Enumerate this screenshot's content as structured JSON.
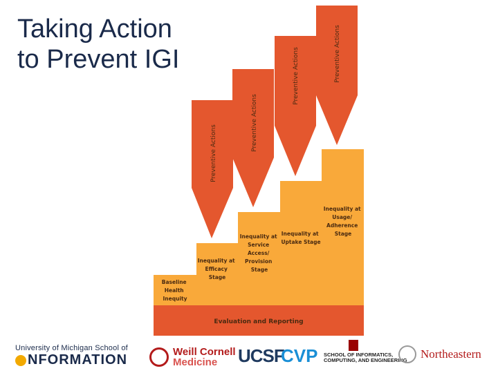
{
  "title": {
    "line1": "Taking Action",
    "line2": "to Prevent IGI"
  },
  "arrows": [
    {
      "label": "Preventive Actions"
    },
    {
      "label": "Preventive Actions"
    },
    {
      "label": "Preventive Actions"
    },
    {
      "label": "Preventive Actions"
    }
  ],
  "stages": [
    {
      "lines": [
        "Baseline",
        "Health",
        "Inequity"
      ]
    },
    {
      "lines": [
        "Inequality at",
        "Efficacy",
        "Stage"
      ]
    },
    {
      "lines": [
        "Inequality at",
        "Service",
        "Access/",
        "Provision",
        "Stage"
      ]
    },
    {
      "lines": [
        "Inequality at",
        "Uptake Stage"
      ]
    },
    {
      "lines": [
        "Inequality at",
        "Usage/",
        "Adherence",
        "Stage"
      ]
    }
  ],
  "footer_bar": {
    "label": "Evaluation and Reporting"
  },
  "colors": {
    "arrow": "#e4572e",
    "step": "#f9a93a",
    "base": "#e4572e",
    "text_dark": "#4a2a10"
  },
  "logos": {
    "umsi": {
      "line1": "University of Michigan School of",
      "line2": "NFORMATION"
    },
    "weill": {
      "line1": "Weill Cornell",
      "line2": "Medicine"
    },
    "ucsf": "UCSF",
    "cvp": "CVP",
    "iu": {
      "line1": "SCHOOL OF INFORMATICS,",
      "line2": "COMPUTING, AND ENGINEERING"
    },
    "northeastern": "Northeastern"
  }
}
